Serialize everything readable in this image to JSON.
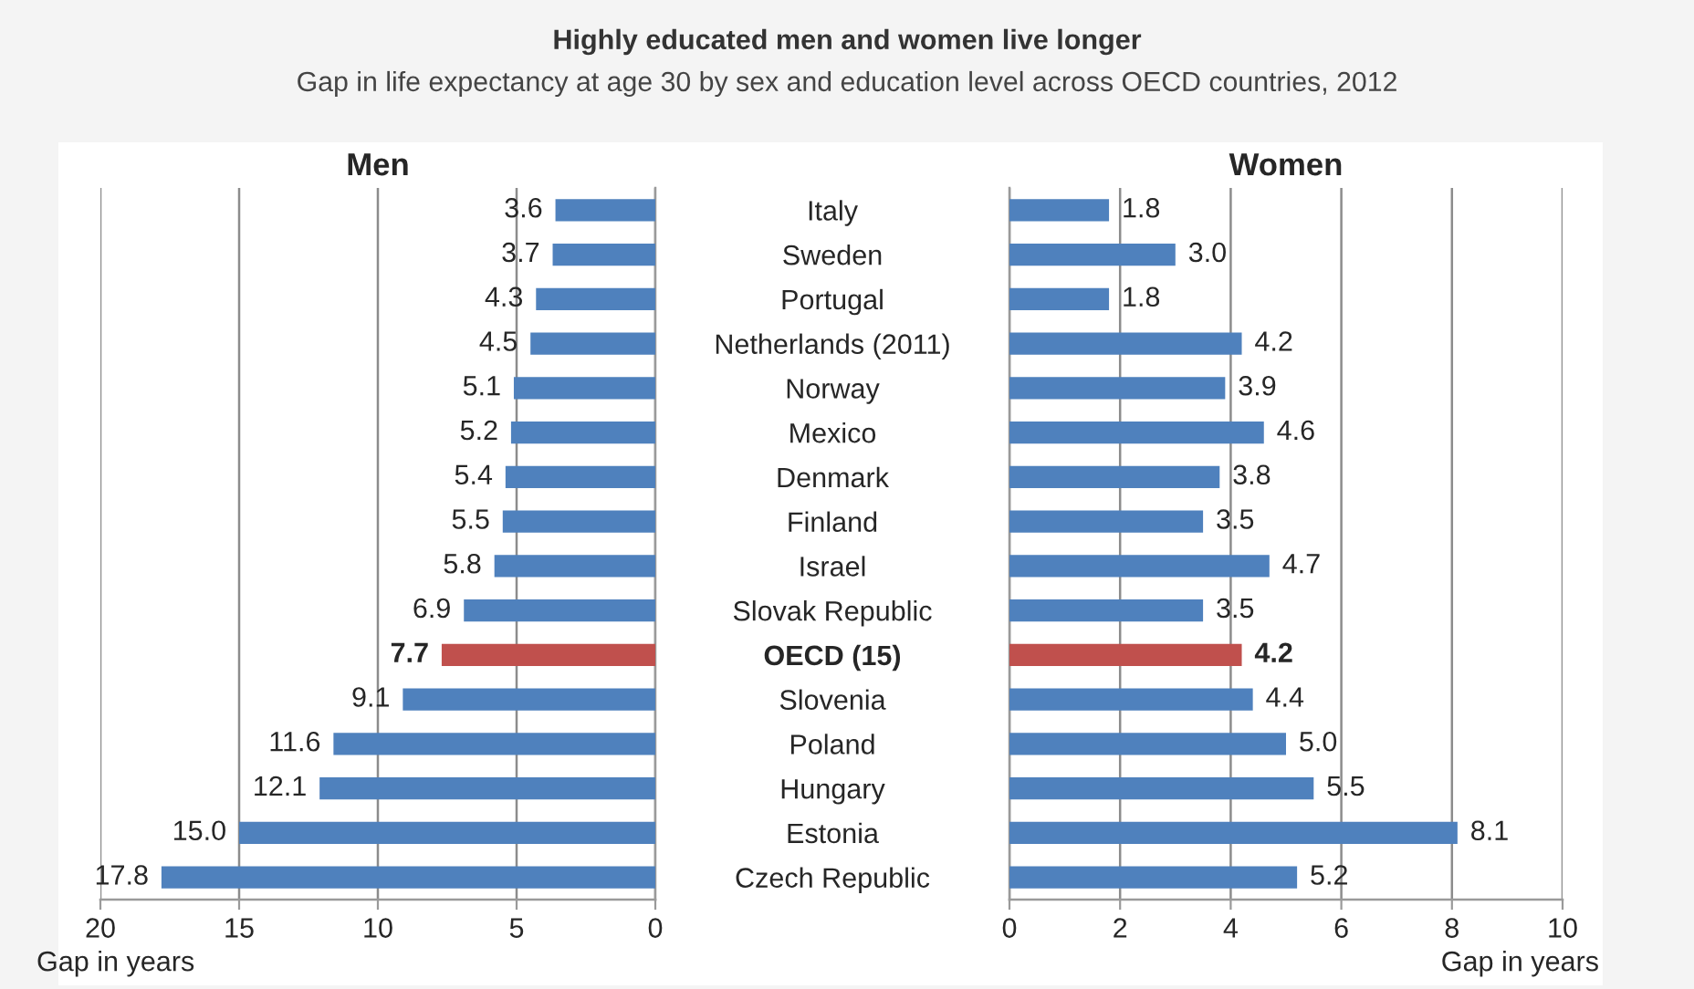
{
  "chart_data": [
    {
      "type": "other",
      "title": "Highly educated men and women live longer",
      "subtitle": "Gap in life expectancy at age 30 by sex and education level across OECD countries, 2012"
    },
    {
      "type": "bar",
      "orientation": "horizontal",
      "title": "Men",
      "xlabel": "Gap in years",
      "categories": [
        "Italy",
        "Sweden",
        "Portugal",
        "Netherlands (2011)",
        "Norway",
        "Mexico",
        "Denmark",
        "Finland",
        "Israel",
        "Slovak Republic",
        "OECD (15)",
        "Slovenia",
        "Poland",
        "Hungary",
        "Estonia",
        "Czech Republic"
      ],
      "values": [
        3.6,
        3.7,
        4.3,
        4.5,
        5.1,
        5.2,
        5.4,
        5.5,
        5.8,
        6.9,
        7.7,
        9.1,
        11.6,
        12.1,
        15.0,
        17.8
      ],
      "colors": [
        "#4f81bd",
        "#4f81bd",
        "#4f81bd",
        "#4f81bd",
        "#4f81bd",
        "#4f81bd",
        "#4f81bd",
        "#4f81bd",
        "#4f81bd",
        "#4f81bd",
        "#c0504d",
        "#4f81bd",
        "#4f81bd",
        "#4f81bd",
        "#4f81bd",
        "#4f81bd"
      ],
      "value_labels": [
        "3.6",
        "3.7",
        "4.3",
        "4.5",
        "5.1",
        "5.2",
        "5.4",
        "5.5",
        "5.8",
        "6.9",
        "7.7",
        "9.1",
        "11.6",
        "12.1",
        "15.0",
        "17.8"
      ],
      "xlim": [
        20,
        0
      ],
      "xticks": [
        20,
        15,
        10,
        5,
        0
      ],
      "grid": "x",
      "tick_labels": "x"
    },
    {
      "type": "bar",
      "orientation": "horizontal",
      "title": "Women",
      "xlabel": "Gap in years",
      "categories": [
        "Italy",
        "Sweden",
        "Portugal",
        "Netherlands (2011)",
        "Norway",
        "Mexico",
        "Denmark",
        "Finland",
        "Israel",
        "Slovak Republic",
        "OECD (15)",
        "Slovenia",
        "Poland",
        "Hungary",
        "Estonia",
        "Czech Republic"
      ],
      "values": [
        1.8,
        3.0,
        1.8,
        4.2,
        3.9,
        4.6,
        3.8,
        3.5,
        4.7,
        3.5,
        4.2,
        4.4,
        5.0,
        5.5,
        8.1,
        5.2
      ],
      "colors": [
        "#4f81bd",
        "#4f81bd",
        "#4f81bd",
        "#4f81bd",
        "#4f81bd",
        "#4f81bd",
        "#4f81bd",
        "#4f81bd",
        "#4f81bd",
        "#4f81bd",
        "#c0504d",
        "#4f81bd",
        "#4f81bd",
        "#4f81bd",
        "#4f81bd",
        "#4f81bd"
      ],
      "value_labels": [
        "1.8",
        "3.0",
        "1.8",
        "4.2",
        "3.9",
        "4.6",
        "3.8",
        "3.5",
        "4.7",
        "3.5",
        "4.2",
        "4.4",
        "5.0",
        "5.5",
        "8.1",
        "5.2"
      ],
      "xlim": [
        0,
        10
      ],
      "xticks": [
        0,
        2,
        4,
        6,
        8,
        10
      ],
      "grid": "x"
    }
  ]
}
